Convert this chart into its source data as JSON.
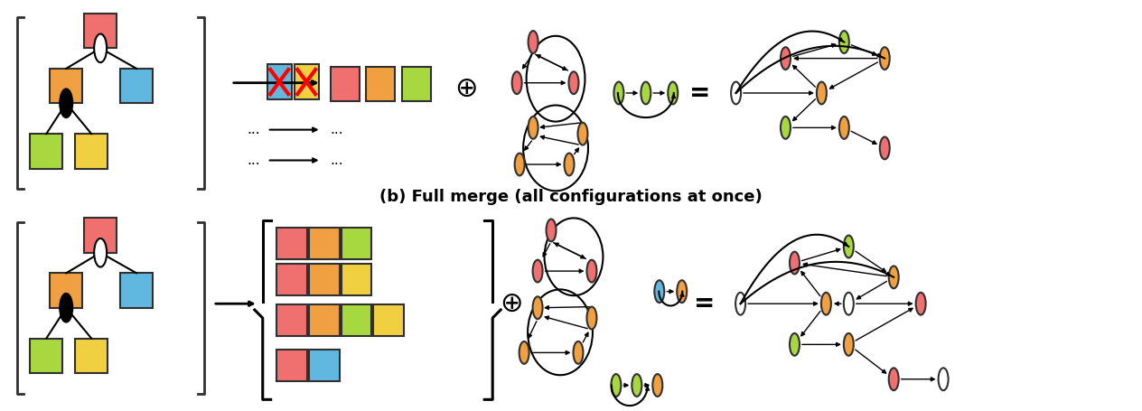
{
  "title": "(b) Full merge (all configurations at once)",
  "bg_color": "#ffffff",
  "panel_b_label": "(b) Full merge (all configurations at once)",
  "colors": {
    "red": "#F07070",
    "orange": "#F0A040",
    "blue": "#60B8E0",
    "green": "#A8D840",
    "yellow": "#F0D040",
    "dark": "#202020",
    "white": "#ffffff",
    "bracket": "#303030"
  }
}
